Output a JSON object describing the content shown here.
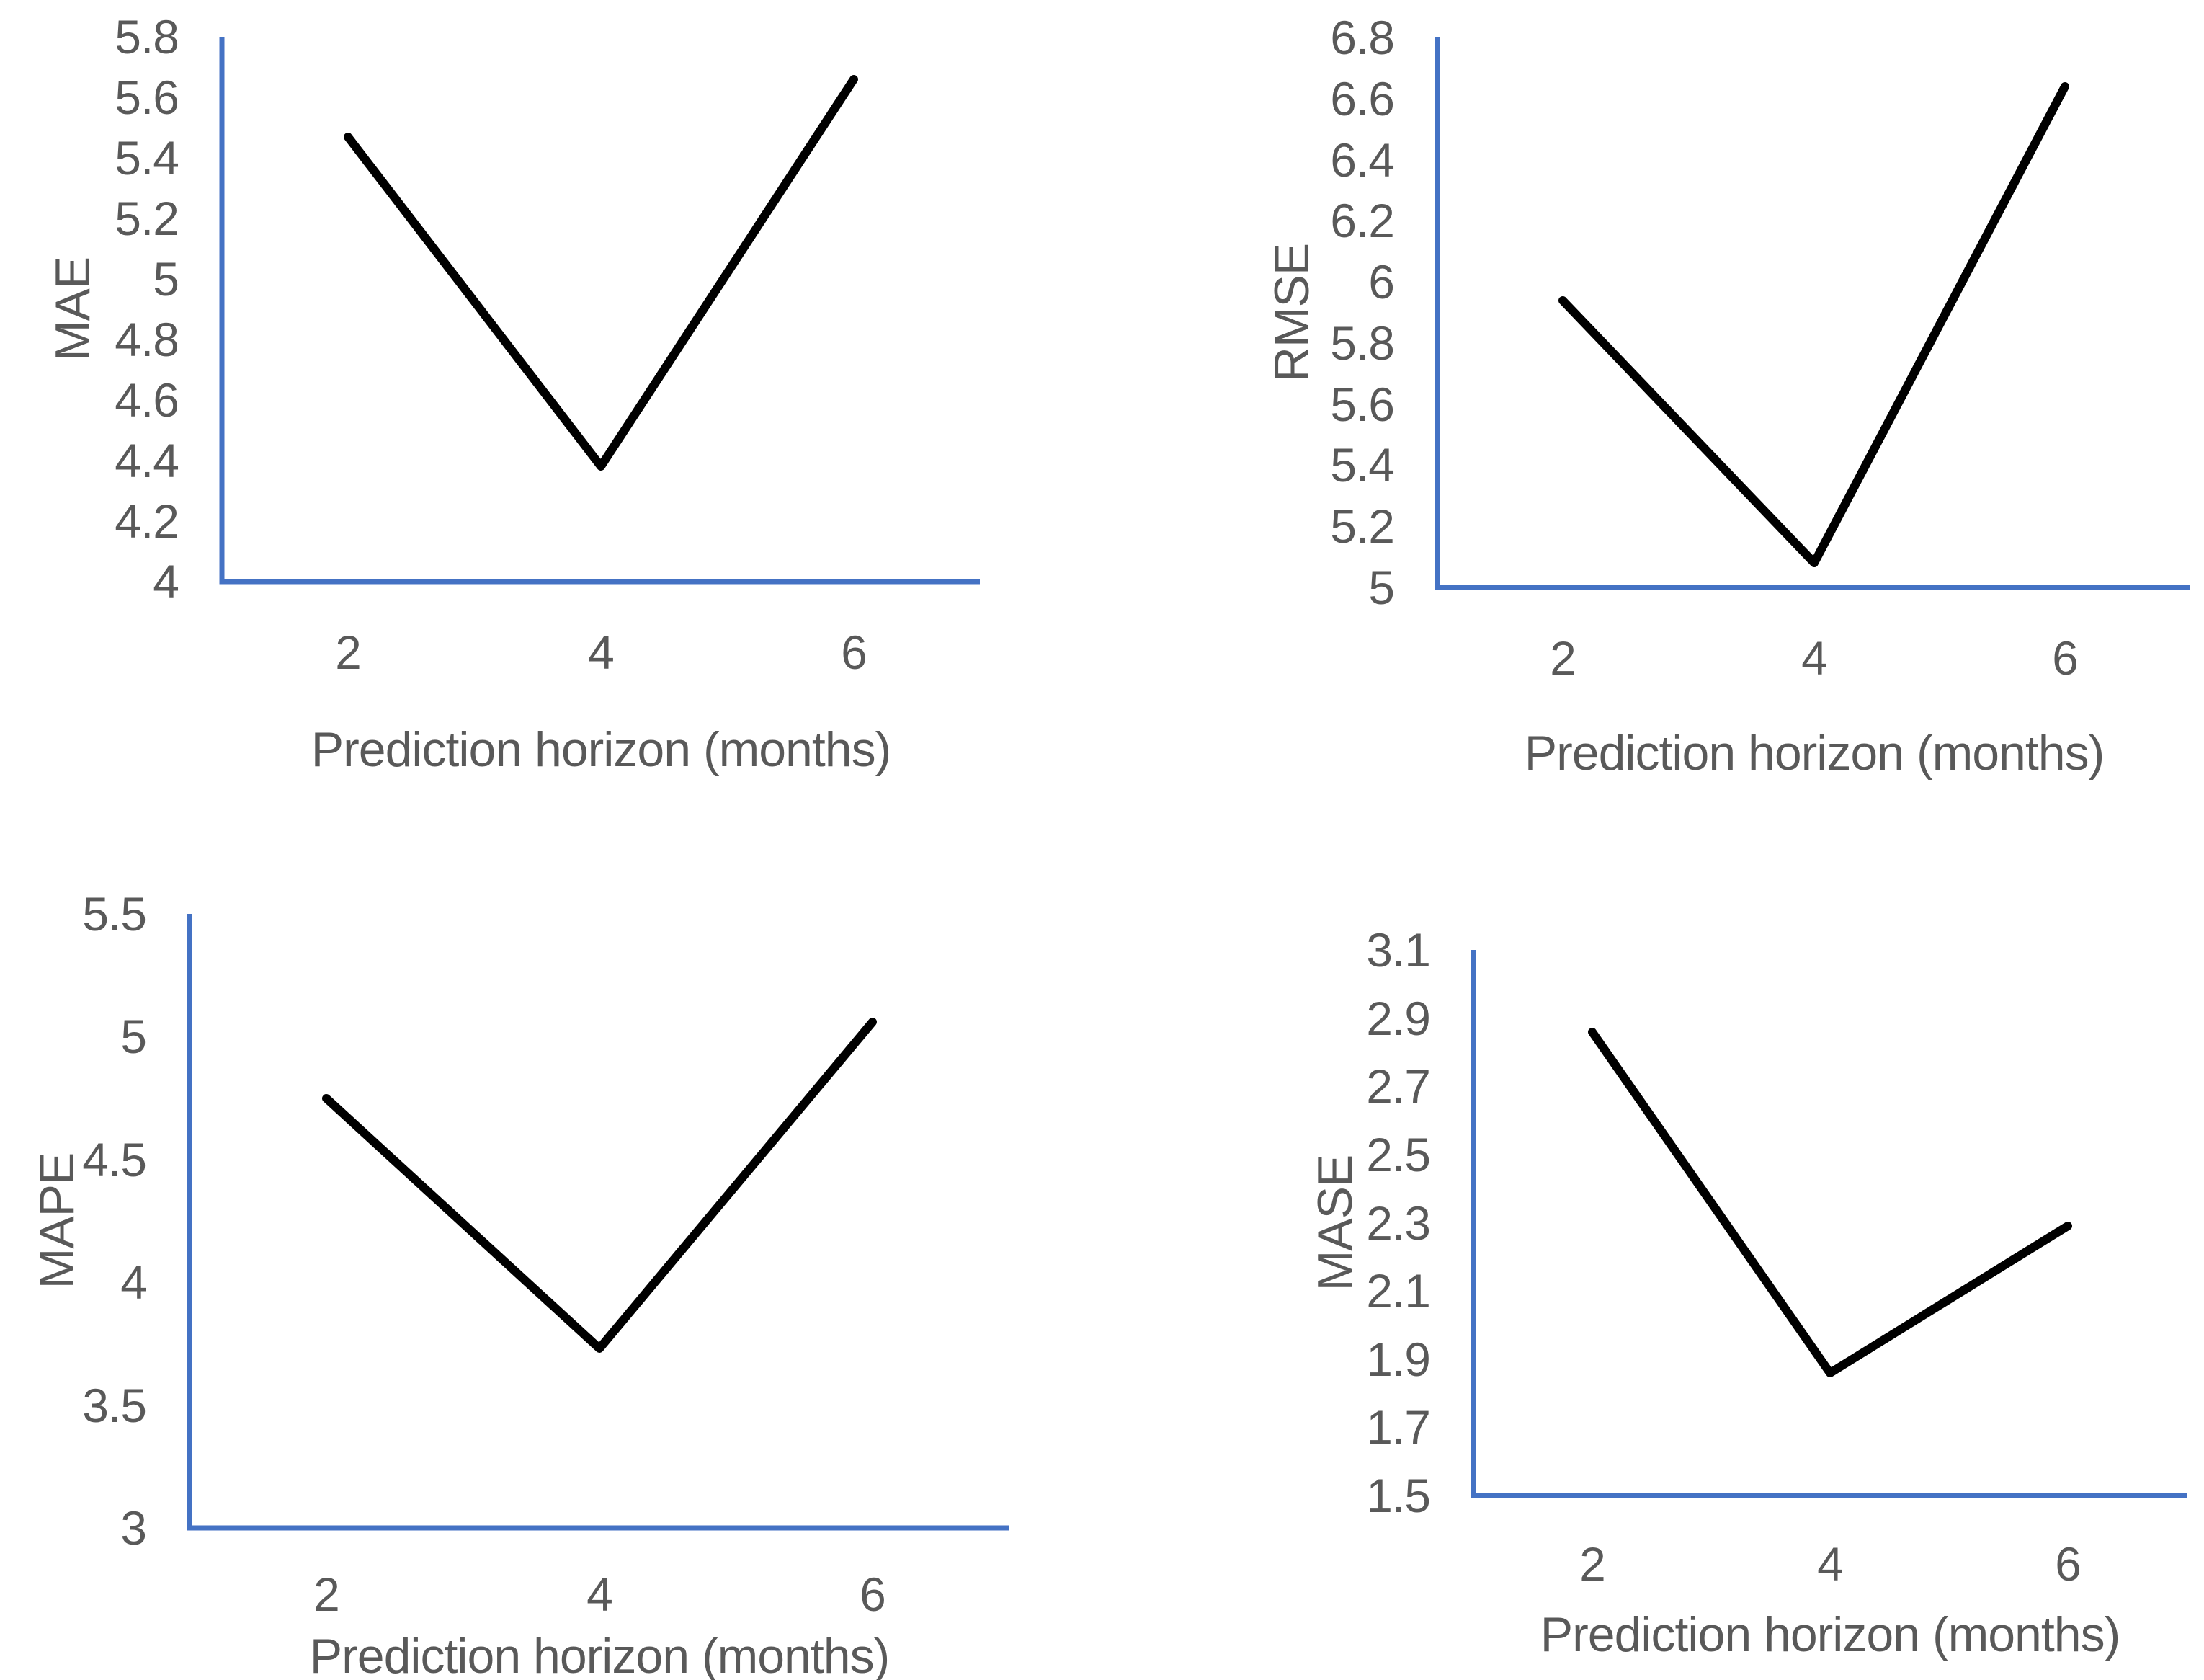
{
  "figure": {
    "background": "#ffffff"
  },
  "styles": {
    "axis_color": "#4472C4",
    "series_color": "#000000",
    "text_color": "#595959",
    "axis_stroke_width": 7,
    "series_stroke_width": 12,
    "tick_font_size": 66,
    "title_font_size": 68
  },
  "chart_data": [
    {
      "id": "mae",
      "type": "line",
      "title": "",
      "xlabel": "Prediction horizon (months)",
      "ylabel": "MAE",
      "categories": [
        2,
        4,
        6
      ],
      "values": [
        5.47,
        4.38,
        5.66
      ],
      "ylim": [
        4,
        5.8
      ],
      "ytick_step": 0.2,
      "grid": false,
      "legend": "none"
    },
    {
      "id": "rmse",
      "type": "line",
      "title": "",
      "xlabel": "Prediction horizon (months)",
      "ylabel": "RMSE",
      "categories": [
        2,
        4,
        6
      ],
      "values": [
        5.94,
        5.08,
        6.64
      ],
      "ylim": [
        5,
        6.8
      ],
      "ytick_step": 0.2,
      "grid": false,
      "legend": "none"
    },
    {
      "id": "mape",
      "type": "line",
      "title": "",
      "xlabel": "Prediction horizon (months)",
      "ylabel": "MAPE",
      "categories": [
        2,
        4,
        6
      ],
      "values": [
        4.75,
        3.73,
        5.06
      ],
      "ylim": [
        3,
        5.5
      ],
      "ytick_step": 0.5,
      "grid": false,
      "legend": "none"
    },
    {
      "id": "mase",
      "type": "line",
      "title": "",
      "xlabel": "Prediction horizon (months)",
      "ylabel": "MASE",
      "categories": [
        2,
        4,
        6
      ],
      "values": [
        2.86,
        1.86,
        2.29
      ],
      "ylim": [
        1.5,
        3.1
      ],
      "ytick_step": 0.2,
      "grid": false,
      "legend": "none"
    }
  ]
}
